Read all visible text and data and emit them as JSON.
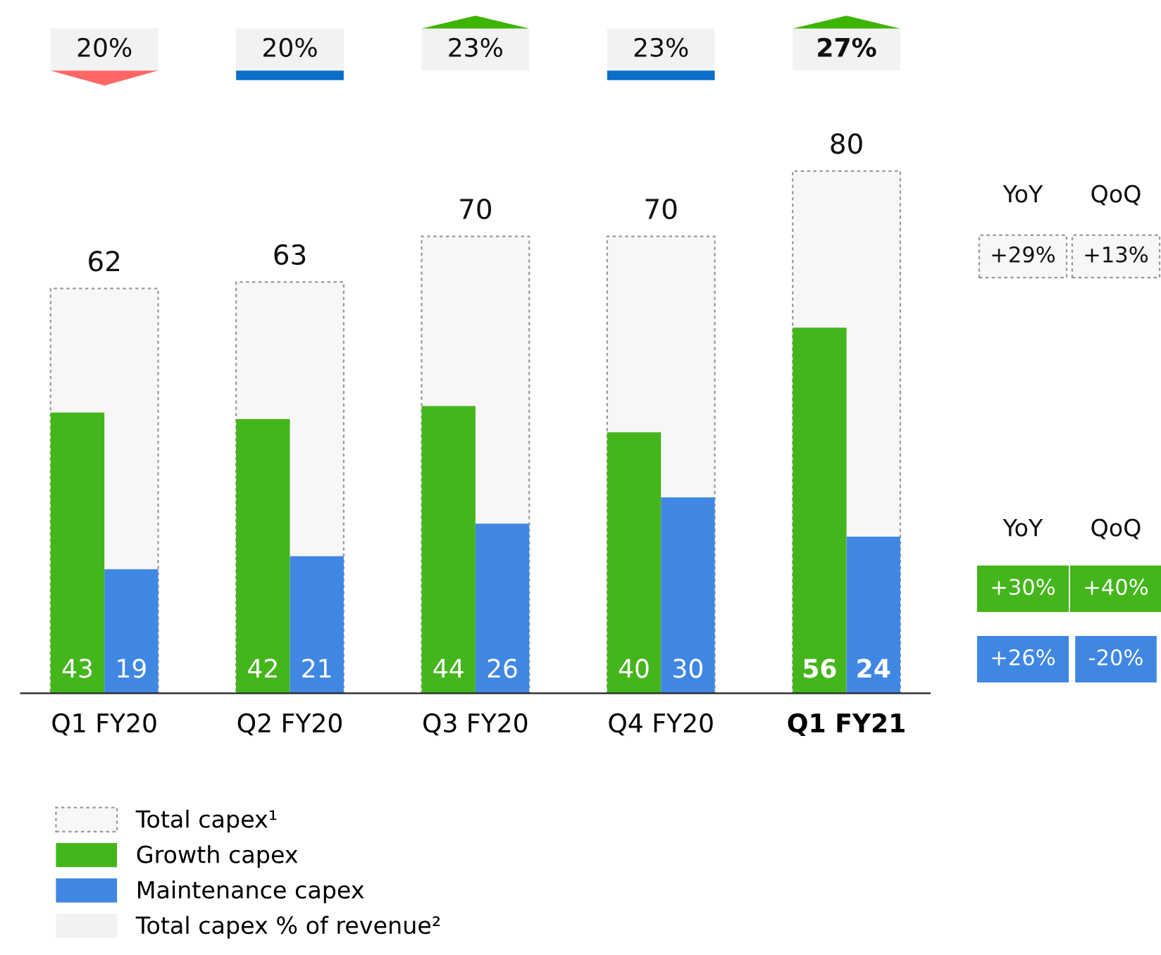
{
  "chart_data": {
    "type": "bar",
    "categories": [
      "Q1 FY20",
      "Q2 FY20",
      "Q3 FY20",
      "Q4 FY20",
      "Q1 FY21"
    ],
    "series": [
      {
        "name": "Total capex¹",
        "color": "#f7f7f7",
        "values": [
          62,
          63,
          70,
          70,
          80
        ]
      },
      {
        "name": "Growth capex",
        "color": "#44b61c",
        "values": [
          43,
          42,
          44,
          40,
          56
        ]
      },
      {
        "name": "Maintenance capex",
        "color": "#3f87e3",
        "values": [
          19,
          21,
          26,
          30,
          24
        ]
      }
    ],
    "data_labels": true,
    "tick_labels": "x",
    "grid": false,
    "legend": "bottom left",
    "annotations": [
      "20%",
      "20%",
      "23%",
      "23%",
      "27%",
      "Total capex % of revenue²",
      "YoY",
      "QoQ",
      "+29%",
      "+13%",
      "YoY",
      "QoQ",
      "+30%",
      "+40%",
      "+26%",
      "-20%"
    ]
  }
}
